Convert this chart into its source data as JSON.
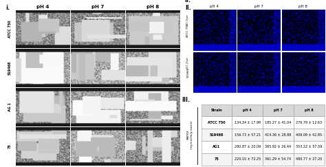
{
  "title_i": "i.",
  "title_ii": "II.",
  "title_iii": "III.",
  "panel_i_row_labels": [
    "ATCC 750",
    "519468",
    "AG 1",
    "75"
  ],
  "panel_i_col_labels": [
    "pH 4",
    "pH 7",
    "pH 8"
  ],
  "panel_ii_row_labels": [
    "ATCC 750",
    "519468"
  ],
  "panel_ii_col_labels": [
    "pH 4",
    "pH 7",
    "pH 8"
  ],
  "table_headers": [
    "Strain",
    "pH 4",
    "pH 7",
    "pH 8"
  ],
  "table_row_labels": [
    "ATCC 750",
    "519468",
    "AG1",
    "75"
  ],
  "table_data": [
    [
      "134.34 ± 17.99",
      "185.27 ± 41.04",
      "276.79 ± 12.63"
    ],
    [
      "156.73 ± 57.21",
      "414.36 ± 28.88",
      "409.09 ± 42.85"
    ],
    [
      "280.87 ± 20.09",
      "365.92 ± 26.44",
      "353.22 ± 57.59"
    ],
    [
      "220.10 ± 72.25",
      "361.29 ± 54.74",
      "480.77 ± 27.20"
    ]
  ],
  "table_ylabel": "MATRIX\n(mg biofilm/g matrix)",
  "bg_color": "#ffffff",
  "sem_header_color": "#c8c8c8",
  "sem_row_label_color": "#d0d0d0",
  "sem_bar_color": "#1a1a1a",
  "sem_img_base": 155,
  "blue_img_color": "#00009a",
  "blue_strip_color": "#0000cc",
  "gray_panel_header": "#c0c0c0",
  "gray_panel_label": "#c8c8c8",
  "table_header_color": "#d8d8d8",
  "table_alt_color": "#f4f4f4"
}
